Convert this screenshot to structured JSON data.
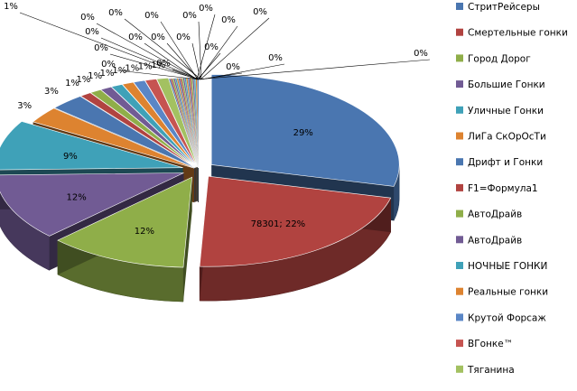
{
  "chart_data": {
    "type": "pie",
    "variant": "3d-exploded",
    "title": "",
    "legend_position": "right",
    "slices": [
      {
        "name": "СтритРейсеры",
        "label": "29%",
        "percent": 29,
        "color": "#4a76b0"
      },
      {
        "name": "Смертельные гонки",
        "label": "78301; 22%",
        "percent": 22,
        "color": "#b14340",
        "value": 78301
      },
      {
        "name": "Город Дорог",
        "label": "12%",
        "percent": 12,
        "color": "#8fae49"
      },
      {
        "name": "Большие Гонки",
        "label": "12%",
        "percent": 12,
        "color": "#715b94"
      },
      {
        "name": "Уличные Гонки",
        "label": "9%",
        "percent": 9,
        "color": "#3fa1b8"
      },
      {
        "name": "ЛиГа СкОрОсТи",
        "label": "3%",
        "percent": 3,
        "color": "#dd8330"
      },
      {
        "name": "Дрифт и Гонки",
        "label": "3%",
        "percent": 3,
        "color": "#4a76b0"
      },
      {
        "name": "F1=Формула1",
        "label": "1%",
        "percent": 1,
        "color": "#b14340"
      },
      {
        "name": "АвтоДрайв",
        "label": "1%",
        "percent": 1,
        "color": "#8fae49"
      },
      {
        "name": "АвтоДрайв",
        "label": "1%",
        "percent": 1,
        "color": "#715b94"
      },
      {
        "name": "НОЧНЫЕ ГОНКИ",
        "label": "1%",
        "percent": 1,
        "color": "#3fa1b8"
      },
      {
        "name": "Реальные гонки",
        "label": "1%",
        "percent": 1,
        "color": "#dd8330"
      },
      {
        "name": "Крутой Форсаж",
        "label": "1%",
        "percent": 1,
        "color": "#5a86c6"
      },
      {
        "name": "ВГонке™",
        "label": "1%",
        "percent": 1,
        "color": "#c65451"
      },
      {
        "name": "Тяганина",
        "label": "1%",
        "percent": 1,
        "color": "#a3c161"
      }
    ],
    "small_slice_labels": [
      "1%",
      "0%",
      "0%",
      "0%",
      "0%",
      "0%",
      "0%",
      "0%",
      "0%",
      "0%",
      "0%",
      "0%",
      "0%",
      "0%",
      "0%",
      "0%",
      "0%",
      "0%",
      "0%"
    ]
  }
}
